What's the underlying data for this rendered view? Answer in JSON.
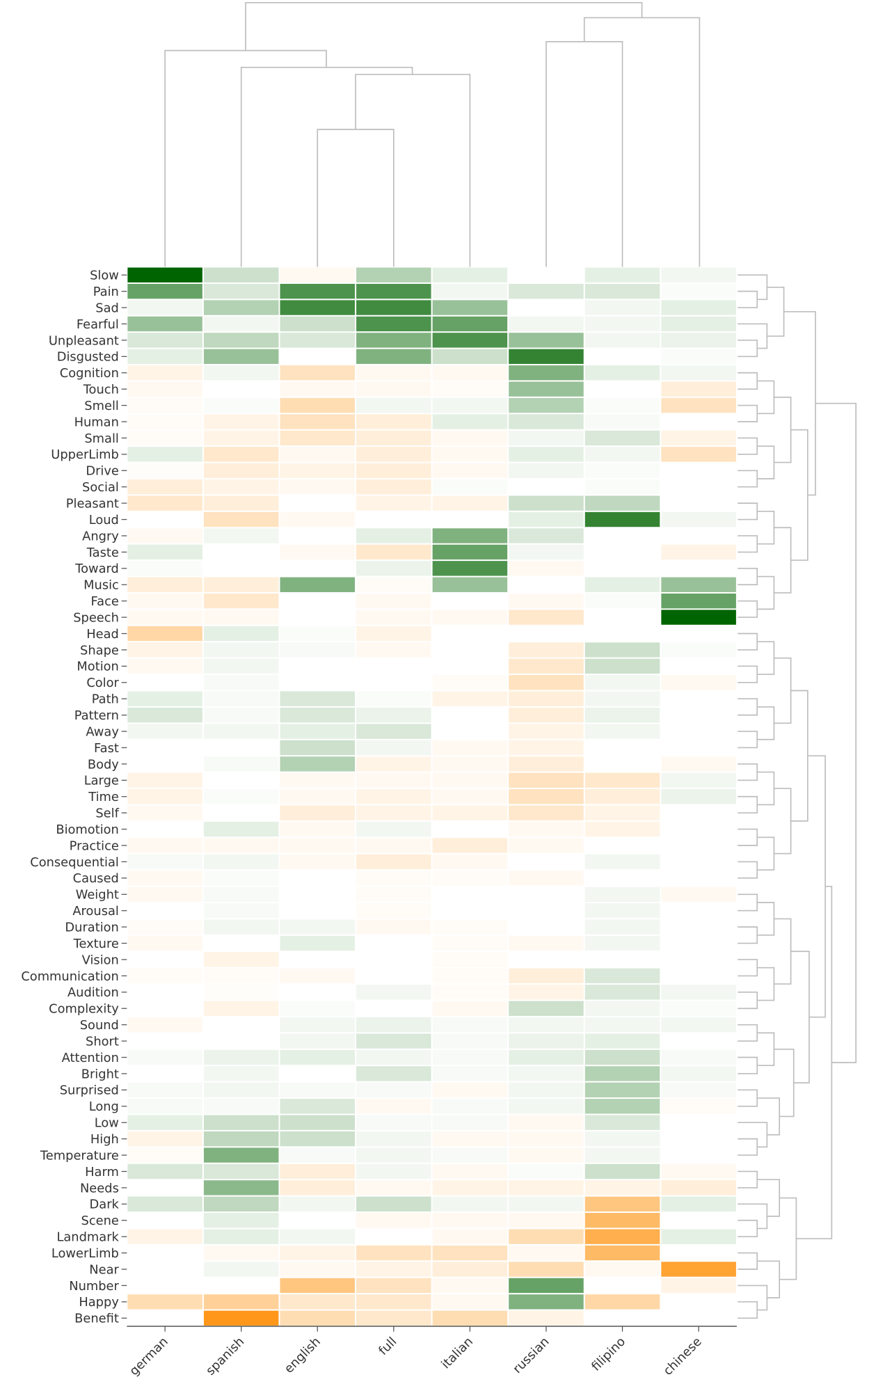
{
  "chart_data": {
    "type": "heatmap",
    "columns": [
      "german",
      "spanish",
      "english",
      "full",
      "italian",
      "russian",
      "filipino",
      "chinese"
    ],
    "rows": [
      "Slow",
      "Pain",
      "Sad",
      "Fearful",
      "Unpleasant",
      "Disgusted",
      "Cognition",
      "Touch",
      "Smell",
      "Human",
      "Small",
      "UpperLimb",
      "Drive",
      "Social",
      "Pleasant",
      "Loud",
      "Angry",
      "Taste",
      "Toward",
      "Music",
      "Face",
      "Speech",
      "Head",
      "Shape",
      "Motion",
      "Color",
      "Path",
      "Pattern",
      "Away",
      "Fast",
      "Body",
      "Large",
      "Time",
      "Self",
      "Biomotion",
      "Practice",
      "Consequential",
      "Caused",
      "Weight",
      "Arousal",
      "Duration",
      "Texture",
      "Vision",
      "Communication",
      "Audition",
      "Complexity",
      "Sound",
      "Short",
      "Attention",
      "Bright",
      "Surprised",
      "Long",
      "Low",
      "High",
      "Temperature",
      "Harm",
      "Needs",
      "Dark",
      "Scene",
      "Landmark",
      "LowerLimb",
      "Near",
      "Number",
      "Happy",
      "Benefit"
    ],
    "values": [
      [
        1.0,
        0.2,
        -0.05,
        0.3,
        0.1,
        0,
        0.1,
        0.05
      ],
      [
        0.6,
        0.15,
        0.7,
        0.7,
        0.05,
        0.15,
        0.15,
        0.02
      ],
      [
        0.05,
        0.3,
        0.75,
        0.75,
        0.4,
        0,
        0.05,
        0.1
      ],
      [
        0.4,
        0.05,
        0.2,
        0.7,
        0.6,
        0.05,
        0.05,
        0.1
      ],
      [
        0.15,
        0.25,
        0.15,
        0.5,
        0.7,
        0.4,
        0.05,
        0.08
      ],
      [
        0.1,
        0.4,
        0,
        0.5,
        0.2,
        0.8,
        0,
        0.02
      ],
      [
        -0.1,
        0.05,
        -0.25,
        -0.05,
        -0.05,
        0.5,
        0.1,
        0.05
      ],
      [
        -0.05,
        0,
        -0.05,
        -0.05,
        -0.03,
        0.4,
        0,
        -0.15
      ],
      [
        -0.03,
        0.02,
        -0.3,
        0.05,
        0.05,
        0.3,
        0.02,
        -0.25
      ],
      [
        -0.03,
        -0.1,
        -0.25,
        -0.15,
        0.1,
        0.15,
        0.03,
        0
      ],
      [
        -0.03,
        -0.1,
        -0.2,
        -0.15,
        -0.05,
        0.05,
        0.15,
        -0.1
      ],
      [
        0.1,
        -0.2,
        -0.05,
        -0.15,
        -0.05,
        0.1,
        0.05,
        -0.25
      ],
      [
        -0.02,
        -0.15,
        -0.1,
        -0.15,
        -0.05,
        0.05,
        0.02,
        0
      ],
      [
        -0.15,
        -0.1,
        -0.05,
        -0.15,
        0.02,
        0,
        0.02,
        0
      ],
      [
        -0.2,
        -0.15,
        0,
        -0.1,
        -0.1,
        0.2,
        0.25,
        0
      ],
      [
        0,
        -0.25,
        -0.05,
        0,
        0,
        0.1,
        0.8,
        0.05
      ],
      [
        -0.05,
        0.05,
        0,
        0.1,
        0.5,
        0.15,
        0,
        0
      ],
      [
        0.1,
        0,
        -0.05,
        -0.2,
        0.6,
        0.05,
        0,
        -0.1
      ],
      [
        0.02,
        0,
        0,
        0.08,
        0.7,
        -0.05,
        0,
        0
      ],
      [
        -0.15,
        -0.15,
        0.5,
        -0.03,
        0.4,
        0,
        0.1,
        0.4
      ],
      [
        -0.05,
        -0.2,
        0,
        -0.05,
        0,
        -0.05,
        0.02,
        0.6
      ],
      [
        -0.05,
        -0.05,
        0,
        -0.05,
        -0.05,
        -0.2,
        0,
        1.0
      ],
      [
        -0.35,
        0.1,
        0.02,
        -0.1,
        0,
        0,
        0,
        0
      ],
      [
        -0.1,
        0.05,
        0.03,
        -0.05,
        0,
        -0.15,
        0.2,
        0.02
      ],
      [
        -0.05,
        0.05,
        0,
        0,
        0,
        -0.2,
        0.2,
        0
      ],
      [
        0,
        0.03,
        0,
        0,
        -0.03,
        -0.25,
        0.05,
        -0.05
      ],
      [
        0.1,
        0.03,
        0.15,
        0.02,
        -0.1,
        -0.15,
        0.05,
        0
      ],
      [
        0.15,
        0.03,
        0.15,
        0.08,
        0,
        -0.15,
        0.08,
        0
      ],
      [
        0.05,
        0.05,
        0.1,
        0.15,
        0,
        -0.1,
        0.05,
        0
      ],
      [
        0,
        0,
        0.2,
        0.05,
        -0.05,
        -0.1,
        0,
        0
      ],
      [
        0,
        0.03,
        0.3,
        -0.1,
        -0.05,
        -0.15,
        0,
        -0.05
      ],
      [
        -0.1,
        0,
        -0.05,
        -0.05,
        -0.05,
        -0.25,
        -0.2,
        0.05
      ],
      [
        -0.1,
        0.02,
        -0.05,
        -0.1,
        -0.05,
        -0.25,
        -0.15,
        0.08
      ],
      [
        -0.05,
        0,
        -0.15,
        -0.1,
        -0.1,
        -0.2,
        -0.1,
        0
      ],
      [
        0,
        0.1,
        -0.05,
        0.05,
        0,
        -0.05,
        -0.1,
        0
      ],
      [
        -0.05,
        -0.05,
        -0.05,
        -0.05,
        -0.15,
        -0.05,
        0,
        0
      ],
      [
        0.03,
        0.05,
        -0.05,
        -0.15,
        -0.05,
        0,
        0.05,
        0
      ],
      [
        -0.05,
        0.02,
        0,
        -0.03,
        -0.03,
        -0.05,
        0,
        0
      ],
      [
        -0.05,
        0.03,
        0,
        -0.03,
        0,
        0,
        0.05,
        -0.05
      ],
      [
        0,
        0.03,
        0,
        -0.03,
        0,
        0,
        0.05,
        0
      ],
      [
        -0.03,
        0.05,
        0.05,
        -0.05,
        -0.03,
        0,
        0.05,
        0
      ],
      [
        -0.05,
        0,
        0.1,
        0,
        -0.03,
        -0.05,
        0.05,
        0
      ],
      [
        0,
        -0.1,
        0,
        0,
        -0.03,
        0,
        0,
        0
      ],
      [
        -0.03,
        -0.03,
        -0.05,
        0,
        -0.03,
        -0.15,
        0.15,
        0
      ],
      [
        0,
        -0.02,
        0,
        0.05,
        -0.03,
        -0.1,
        0.15,
        0.05
      ],
      [
        0,
        -0.1,
        0.02,
        0,
        -0.05,
        0.2,
        0.05,
        0.02
      ],
      [
        -0.05,
        0,
        0.05,
        0.08,
        0.03,
        0.05,
        0.05,
        0.05
      ],
      [
        0,
        0,
        0.05,
        0.15,
        0.03,
        0.08,
        0.1,
        0
      ],
      [
        0.03,
        0.08,
        0.1,
        0.05,
        0.03,
        0.1,
        0.2,
        0.03
      ],
      [
        0,
        0.05,
        0,
        0.15,
        0.03,
        0.05,
        0.3,
        0.05
      ],
      [
        0.03,
        0.05,
        0.03,
        0.03,
        -0.05,
        0.05,
        0.3,
        0.03
      ],
      [
        0.03,
        0.03,
        0.15,
        -0.05,
        0.03,
        0.05,
        0.3,
        -0.03
      ],
      [
        0.1,
        0.2,
        0.2,
        0.03,
        0.03,
        -0.05,
        0.15,
        0
      ],
      [
        -0.1,
        0.25,
        0.2,
        0.05,
        -0.05,
        -0.05,
        0.05,
        0
      ],
      [
        -0.03,
        0.5,
        0.03,
        0.05,
        0.03,
        -0.05,
        0.05,
        0
      ],
      [
        0.15,
        0.15,
        -0.15,
        0.05,
        -0.05,
        0.02,
        0.2,
        -0.05
      ],
      [
        0,
        0.45,
        -0.15,
        -0.05,
        -0.1,
        -0.1,
        -0.1,
        -0.15
      ],
      [
        0.15,
        0.25,
        0.05,
        0.2,
        0.05,
        0.05,
        -0.5,
        0.1
      ],
      [
        0,
        0.1,
        0,
        -0.05,
        -0.05,
        -0.05,
        -0.6,
        0
      ],
      [
        -0.1,
        0.1,
        0.05,
        0,
        -0.05,
        -0.3,
        -0.7,
        0.1
      ],
      [
        0,
        -0.05,
        -0.1,
        -0.25,
        -0.25,
        -0.05,
        -0.6,
        0
      ],
      [
        0,
        0.05,
        -0.05,
        -0.1,
        -0.15,
        -0.3,
        -0.05,
        -0.8
      ],
      [
        0,
        0,
        -0.5,
        -0.25,
        -0.05,
        0.6,
        0,
        -0.1
      ],
      [
        -0.3,
        -0.4,
        -0.2,
        -0.2,
        -0.05,
        0.5,
        -0.35,
        0
      ],
      [
        0,
        -0.9,
        -0.3,
        -0.2,
        -0.3,
        -0.1,
        0,
        0
      ]
    ],
    "vlim": [
      -1,
      1
    ],
    "cmap": [
      "#ff8c00",
      "#ffffff",
      "#006400"
    ]
  }
}
